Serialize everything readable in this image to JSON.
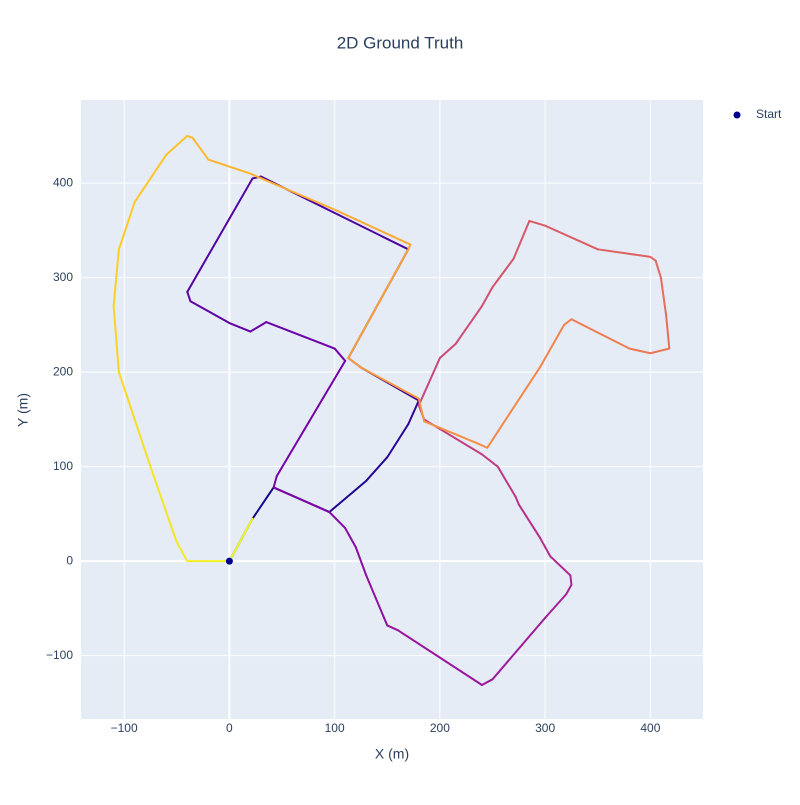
{
  "chart_data": {
    "type": "line",
    "title": "2D Ground Truth",
    "x_label": "X (m)",
    "y_label": "Y (m)",
    "xlim": [
      -141,
      450
    ],
    "ylim": [
      -167,
      488
    ],
    "xticks": [
      {
        "value": -100,
        "label": "−100"
      },
      0,
      100,
      200,
      300,
      400
    ],
    "yticks": [
      {
        "value": -100,
        "label": "−100"
      },
      0,
      100,
      200,
      300,
      400
    ],
    "grid": true,
    "colorscale": [
      "#0d0887",
      "#46039f",
      "#7201a8",
      "#9c179e",
      "#bd3786",
      "#d8576b",
      "#ed7953",
      "#fb9f3a",
      "#fdca26",
      "#f0f921"
    ],
    "x": [
      0,
      22,
      42,
      95,
      130,
      150,
      170,
      180,
      125,
      113,
      170,
      30,
      22,
      -40,
      -37,
      0,
      20,
      35,
      100,
      110,
      45,
      42,
      95,
      110,
      120,
      130,
      150,
      160,
      240,
      250,
      300,
      320,
      325,
      324,
      305,
      295,
      275,
      272,
      255,
      240,
      185,
      180,
      200,
      215,
      240,
      250,
      270,
      285,
      300,
      350,
      400,
      405,
      410,
      415,
      418,
      400,
      380,
      325,
      318,
      295,
      245,
      235,
      185,
      180,
      125,
      113,
      170,
      172,
      100,
      20,
      -20,
      -35,
      -40,
      -60,
      -90,
      -105,
      -110,
      -105,
      -90,
      -75,
      -50,
      -40,
      -20,
      0,
      22
    ],
    "y": [
      0,
      45,
      78,
      52,
      85,
      110,
      145,
      170,
      205,
      215,
      330,
      407,
      405,
      285,
      275,
      252,
      243,
      253,
      225,
      212,
      90,
      78,
      52,
      35,
      15,
      -15,
      -68,
      -73,
      -131,
      -125,
      -60,
      -35,
      -25,
      -15,
      5,
      25,
      60,
      68,
      100,
      113,
      150,
      165,
      215,
      230,
      270,
      290,
      320,
      360,
      355,
      330,
      322,
      318,
      300,
      260,
      225,
      220,
      225,
      256,
      250,
      205,
      120,
      125,
      148,
      172,
      205,
      215,
      330,
      335,
      372,
      410,
      425,
      448,
      450,
      430,
      380,
      330,
      270,
      200,
      150,
      100,
      20,
      0,
      0,
      0,
      45
    ],
    "series": [
      {
        "name": "Start",
        "color": "#00008b",
        "x": [
          0
        ],
        "y": [
          0
        ]
      }
    ]
  }
}
